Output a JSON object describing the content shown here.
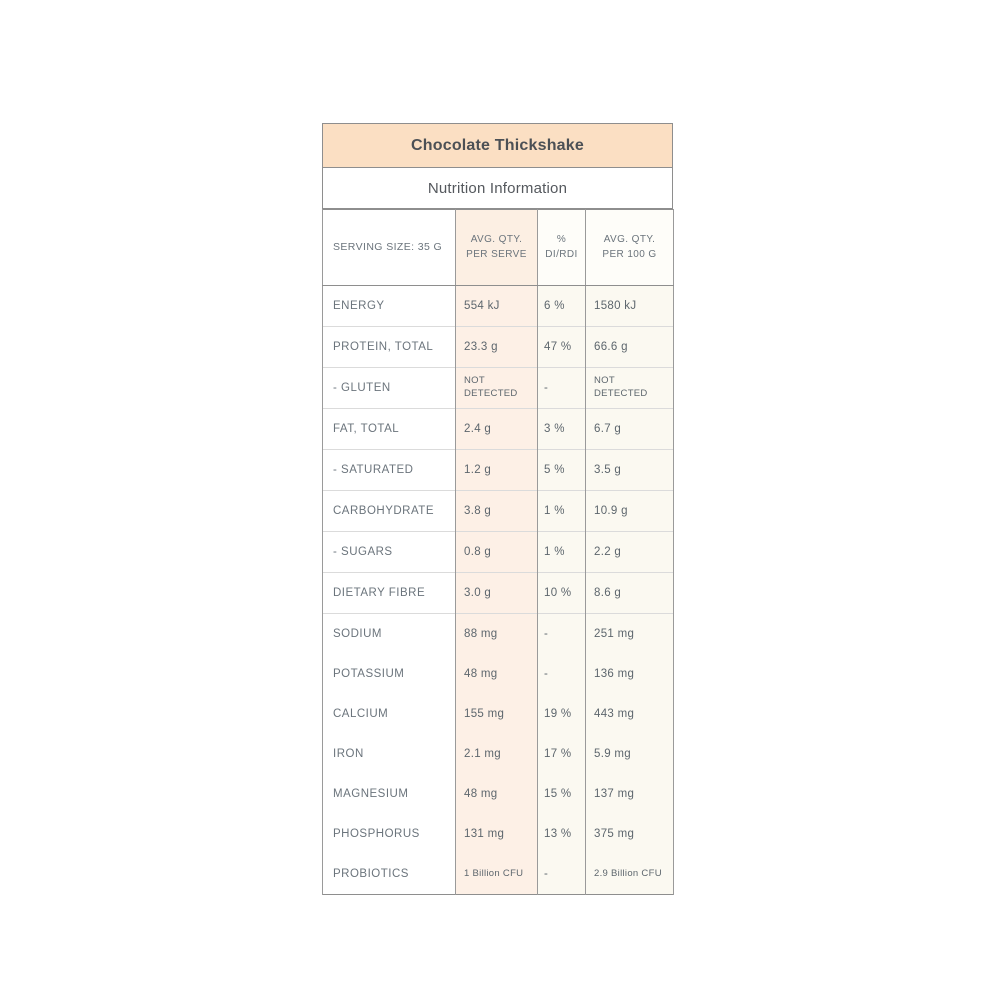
{
  "panel": {
    "title": "Chocolate Thickshake",
    "subtitle": "Nutrition Information",
    "colors": {
      "title_bg": "#fbdfc3",
      "per_serve_col_bg": "#fdf0e6",
      "cream_col_bg": "#fbf9f1",
      "border": "#8e8e8e",
      "label_text": "#6b747c",
      "value_text": "#5d666d"
    },
    "columns": [
      {
        "key": "label",
        "header": "SERVING SIZE: 35 G"
      },
      {
        "key": "serve",
        "header": "AVG. QTY. PER SERVE"
      },
      {
        "key": "pct",
        "header": "% DI/RDI"
      },
      {
        "key": "per100",
        "header": "AVG. QTY. PER 100 G"
      }
    ],
    "rows": [
      {
        "label": "ENERGY",
        "serve": "554 kJ",
        "pct": "6 %",
        "per100": "1580 kJ",
        "sep": false,
        "small": false,
        "wrap": false
      },
      {
        "label": "PROTEIN, TOTAL",
        "serve": "23.3 g",
        "pct": "47 %",
        "per100": "66.6 g",
        "sep": true,
        "small": false,
        "wrap": false
      },
      {
        "label": "- GLUTEN",
        "serve": "NOT DETECTED",
        "pct": "-",
        "per100": "NOT DETECTED",
        "sep": true,
        "small": true,
        "wrap": true
      },
      {
        "label": "FAT, TOTAL",
        "serve": "2.4 g",
        "pct": "3 %",
        "per100": "6.7 g",
        "sep": true,
        "small": false,
        "wrap": false
      },
      {
        "label": "- SATURATED",
        "serve": "1.2 g",
        "pct": "5 %",
        "per100": "3.5 g",
        "sep": true,
        "small": false,
        "wrap": false
      },
      {
        "label": "CARBOHYDRATE",
        "serve": "3.8 g",
        "pct": "1 %",
        "per100": "10.9 g",
        "sep": true,
        "small": false,
        "wrap": false
      },
      {
        "label": "- SUGARS",
        "serve": "0.8 g",
        "pct": "1 %",
        "per100": "2.2 g",
        "sep": true,
        "small": false,
        "wrap": false
      },
      {
        "label": "DIETARY FIBRE",
        "serve": "3.0 g",
        "pct": "10 %",
        "per100": "8.6 g",
        "sep": true,
        "small": false,
        "wrap": false
      },
      {
        "label": "SODIUM",
        "serve": "88 mg",
        "pct": "-",
        "per100": "251 mg",
        "sep": true,
        "small": false,
        "wrap": false
      },
      {
        "label": "POTASSIUM",
        "serve": "48 mg",
        "pct": "-",
        "per100": "136 mg",
        "sep": false,
        "small": false,
        "wrap": false
      },
      {
        "label": "CALCIUM",
        "serve": "155 mg",
        "pct": "19 %",
        "per100": "443 mg",
        "sep": false,
        "small": false,
        "wrap": false
      },
      {
        "label": "IRON",
        "serve": "2.1 mg",
        "pct": "17 %",
        "per100": "5.9 mg",
        "sep": false,
        "small": false,
        "wrap": false
      },
      {
        "label": "MAGNESIUM",
        "serve": "48 mg",
        "pct": "15 %",
        "per100": "137 mg",
        "sep": false,
        "small": false,
        "wrap": false
      },
      {
        "label": "PHOSPHORUS",
        "serve": "131 mg",
        "pct": "13 %",
        "per100": "375 mg",
        "sep": false,
        "small": false,
        "wrap": false
      },
      {
        "label": "PROBIOTICS",
        "serve": "1 Billion CFU",
        "pct": "-",
        "per100": "2.9 Billion CFU",
        "sep": false,
        "small": true,
        "wrap": false
      }
    ]
  }
}
